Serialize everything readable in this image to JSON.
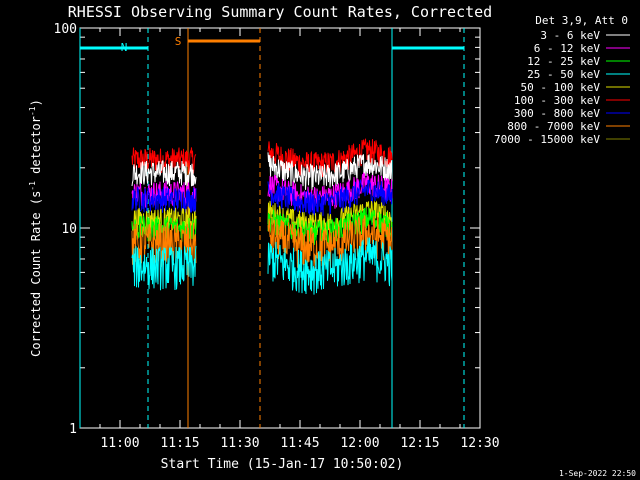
{
  "chart_data": {
    "type": "line",
    "title": "RHESSI Observing Summary Count Rates, Corrected",
    "xlabel": "Start Time (15-Jan-17 10:50:02)",
    "ylabel": "Corrected Count Rate (s",
    "ylabel_unit": "-1",
    "ylabel_rest": " detector",
    "ylabel_close": ")",
    "y_scale": "log",
    "ylim": [
      1,
      100
    ],
    "xlim": [
      "10:50",
      "12:30"
    ],
    "x_ticks": [
      "11:00",
      "11:15",
      "11:30",
      "11:45",
      "12:00",
      "12:15",
      "12:30"
    ],
    "x_tick_minutes": [
      600,
      615,
      630,
      645,
      660,
      675,
      690
    ],
    "y_ticks": [
      "1",
      "10",
      "100"
    ],
    "y_tick_values": [
      1,
      10,
      100
    ],
    "legend": {
      "header": "Det 3,9, Att 0",
      "placement": "top-right",
      "entries": [
        {
          "label": "3 - 6 keV",
          "color": "#ffffff"
        },
        {
          "label": "6 - 12 keV",
          "color": "#ff00ff"
        },
        {
          "label": "12 - 25 keV",
          "color": "#00ff00"
        },
        {
          "label": "25 - 50 keV",
          "color": "#00ffff"
        },
        {
          "label": "50 - 100 keV",
          "color": "#dddd00"
        },
        {
          "label": "100 - 300 keV",
          "color": "#ff0000"
        },
        {
          "label": "300 - 800 keV",
          "color": "#0000ff"
        },
        {
          "label": "800 - 7000 keV",
          "color": "#ff7f00"
        },
        {
          "label": "7000 - 15000 keV",
          "color": "#7f7f00"
        }
      ]
    },
    "segments": [
      {
        "start_min": 603,
        "end_min": 619
      },
      {
        "start_min": 637,
        "end_min": 668
      }
    ],
    "series": [
      {
        "color": "#ff0000",
        "level": 22
      },
      {
        "color": "#ffffff",
        "level": 19
      },
      {
        "color": "#ff00ff",
        "level": 15
      },
      {
        "color": "#0000ff",
        "level": 14
      },
      {
        "color": "#dddd00",
        "level": 11
      },
      {
        "color": "#00ff00",
        "level": 10
      },
      {
        "color": "#ff7f00",
        "level": 8.5
      },
      {
        "color": "#00ffff",
        "level": 6.5
      }
    ],
    "annotations": {
      "N": {
        "label": "N",
        "color": "#00ffff",
        "start_min": 590,
        "end_min": 607
      },
      "N2": {
        "color": "#00ffff",
        "start_min": 668,
        "end_min": 686
      },
      "S": {
        "label": "S",
        "color": "#ff7f00",
        "start_min": 617,
        "end_min": 635
      }
    },
    "grid": false
  },
  "footer": {
    "timestamp": "1-Sep-2022 22:50"
  }
}
